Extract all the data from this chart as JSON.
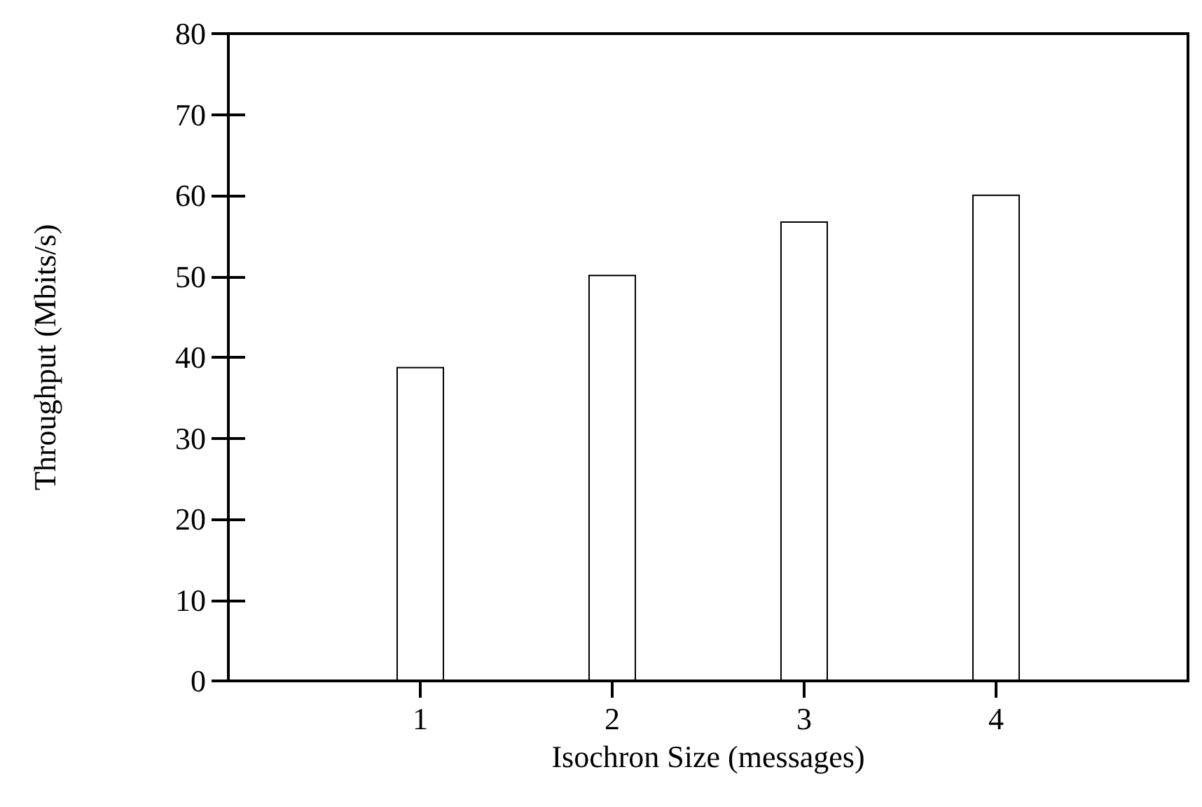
{
  "chart_data": {
    "type": "bar",
    "xlabel": "Isochron Size (messages)",
    "ylabel": "Throughput (Mbits/s)",
    "x": [
      1,
      2,
      3,
      4
    ],
    "values": [
      38.8,
      50.2,
      56.8,
      60.1
    ],
    "color": "#ffffff",
    "xlim": [
      0,
      5
    ],
    "xticks": [
      1,
      2,
      3,
      4
    ],
    "ylim": [
      0,
      80
    ],
    "yticks": [
      0,
      10,
      20,
      30,
      40,
      50,
      60,
      70,
      80
    ],
    "grid": false
  }
}
